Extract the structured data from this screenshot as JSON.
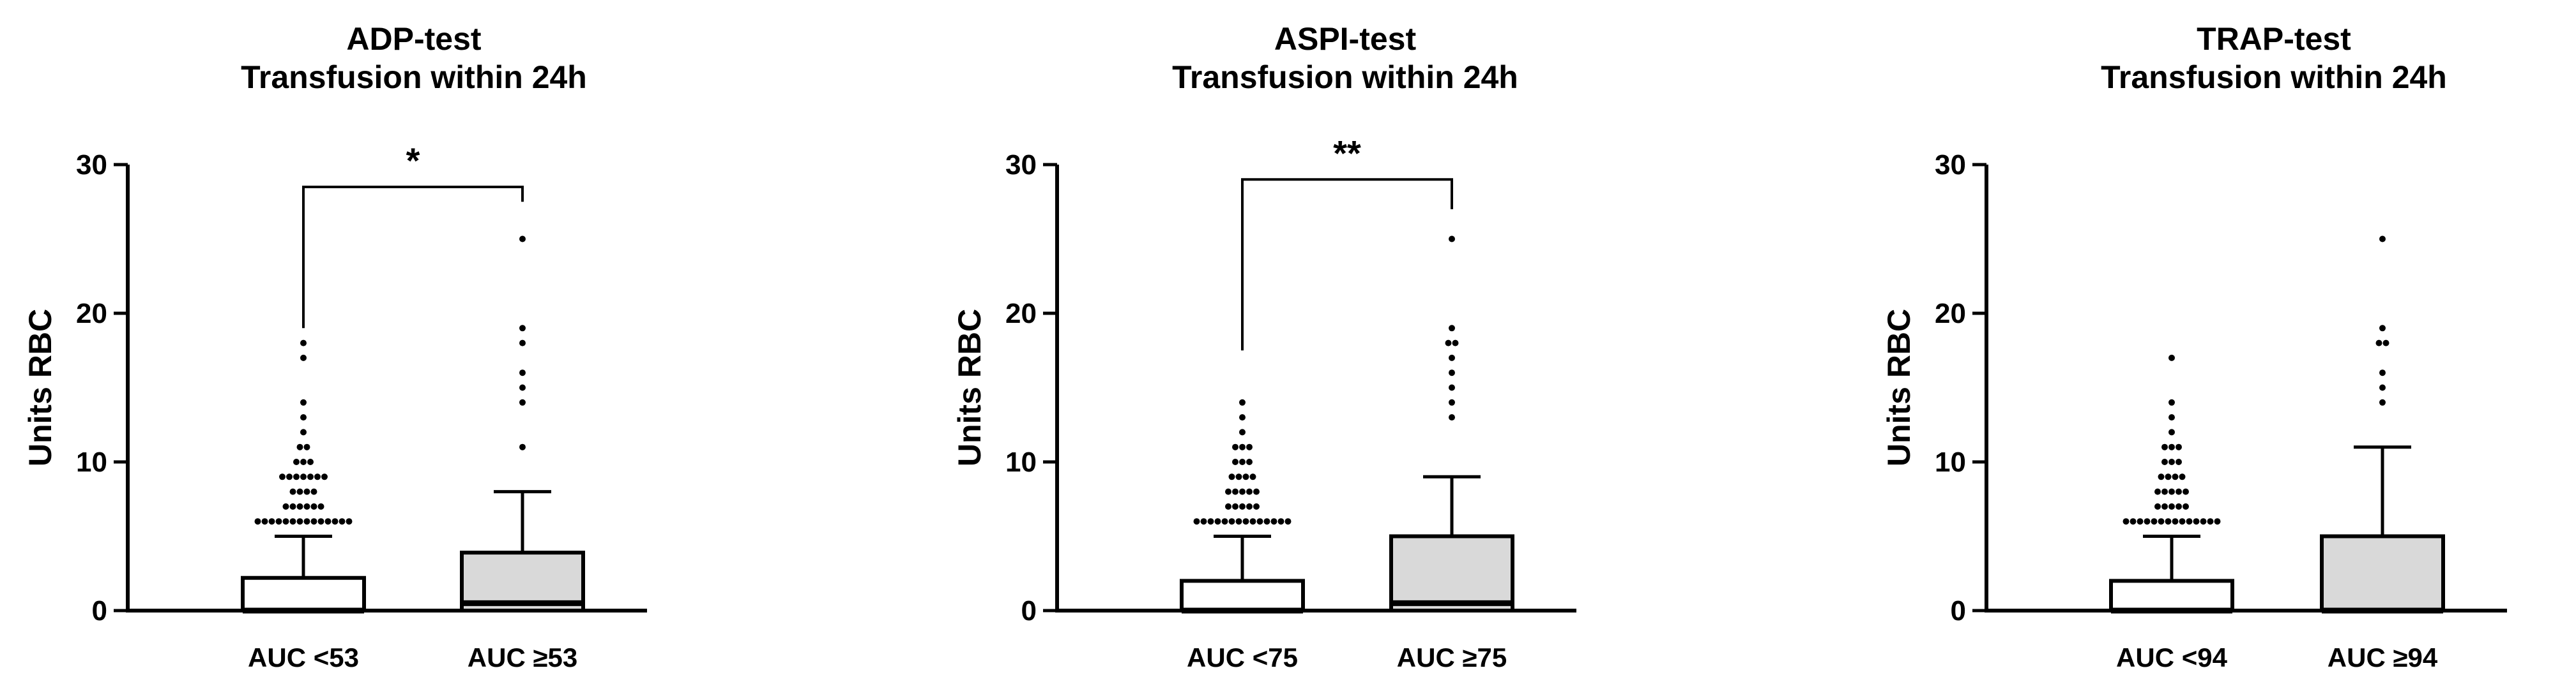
{
  "colors": {
    "box_group1": "#ffffff",
    "box_group2": "#d9d9d9",
    "ink": "#000000"
  },
  "chart_data": [
    {
      "type": "box",
      "title": [
        "ADP-test",
        "Transfusion within 24h"
      ],
      "xlabel": "",
      "ylabel": "Units RBC",
      "ylim": [
        0,
        30
      ],
      "yticks": [
        0,
        10,
        20,
        30
      ],
      "grid": false,
      "categories": [
        "AUC <53",
        "AUC ≥53"
      ],
      "boxes": [
        {
          "q1": 0,
          "median": 0,
          "q3": 2.2,
          "whisker_low": 0,
          "whisker_high": 5,
          "outliers": [
            6,
            6,
            6,
            6,
            6,
            6,
            6,
            6,
            6,
            6,
            6,
            6,
            6,
            6,
            7,
            7,
            7,
            7,
            7,
            7,
            8,
            8,
            8,
            8,
            9,
            9,
            9,
            9,
            9,
            9,
            9,
            10,
            10,
            10,
            11,
            11,
            12,
            13,
            14,
            17,
            18
          ]
        },
        {
          "q1": 0,
          "median": 0.5,
          "q3": 3.9,
          "whisker_low": 0,
          "whisker_high": 8,
          "outliers": [
            11,
            14,
            15,
            16,
            18,
            19,
            25
          ]
        }
      ],
      "significance": {
        "from": 0,
        "to": 1,
        "label": "*",
        "y": 28.5,
        "left_drop": 19,
        "right_drop": 27.5
      }
    },
    {
      "type": "box",
      "title": [
        "ASPI-test",
        "Transfusion within 24h"
      ],
      "xlabel": "",
      "ylabel": "Units RBC",
      "ylim": [
        0,
        30
      ],
      "yticks": [
        0,
        10,
        20,
        30
      ],
      "grid": false,
      "categories": [
        "AUC <75",
        "AUC ≥75"
      ],
      "boxes": [
        {
          "q1": 0,
          "median": 0,
          "q3": 2,
          "whisker_low": 0,
          "whisker_high": 5,
          "outliers": [
            6,
            6,
            6,
            6,
            6,
            6,
            6,
            6,
            6,
            6,
            6,
            6,
            6,
            6,
            7,
            7,
            7,
            7,
            7,
            8,
            8,
            8,
            8,
            8,
            9,
            9,
            9,
            9,
            10,
            10,
            10,
            11,
            11,
            11,
            12,
            13,
            14
          ]
        },
        {
          "q1": 0,
          "median": 0.5,
          "q3": 5,
          "whisker_low": 0,
          "whisker_high": 9,
          "outliers": [
            13,
            14,
            15,
            16,
            17,
            18,
            18,
            19,
            25
          ]
        }
      ],
      "significance": {
        "from": 0,
        "to": 1,
        "label": "**",
        "y": 29,
        "left_drop": 17.5,
        "right_drop": 27
      }
    },
    {
      "type": "box",
      "title": [
        "TRAP-test",
        "Transfusion within 24h"
      ],
      "xlabel": "",
      "ylabel": "Units RBC",
      "ylim": [
        0,
        30
      ],
      "yticks": [
        0,
        10,
        20,
        30
      ],
      "grid": false,
      "categories": [
        "AUC <94",
        "AUC ≥94"
      ],
      "boxes": [
        {
          "q1": 0,
          "median": 0,
          "q3": 2,
          "whisker_low": 0,
          "whisker_high": 5,
          "outliers": [
            6,
            6,
            6,
            6,
            6,
            6,
            6,
            6,
            6,
            6,
            6,
            6,
            6,
            6,
            7,
            7,
            7,
            7,
            7,
            8,
            8,
            8,
            8,
            8,
            9,
            9,
            9,
            9,
            10,
            10,
            10,
            11,
            11,
            11,
            12,
            13,
            14,
            17
          ]
        },
        {
          "q1": 0,
          "median": 0,
          "q3": 5,
          "whisker_low": 0,
          "whisker_high": 11,
          "outliers": [
            14,
            15,
            16,
            18,
            18,
            19,
            25
          ]
        }
      ],
      "significance": null
    }
  ]
}
